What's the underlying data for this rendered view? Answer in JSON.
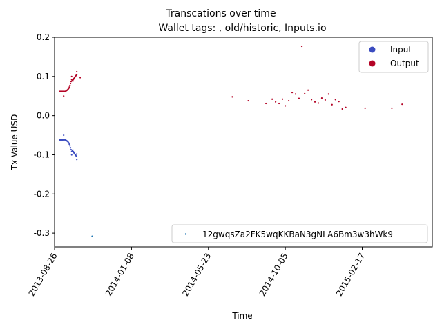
{
  "chart_data": {
    "type": "scatter",
    "title": "Transcations over time",
    "subtitle": "Wallet tags: , old/historic, Inputs.io",
    "xlabel": "Time",
    "ylabel": "Tx Value USD",
    "xlim": [
      "2013-08-26",
      "2015-06-20"
    ],
    "ylim": [
      -0.335,
      0.2
    ],
    "x_ticks": [
      "2013-08-26",
      "2014-01-08",
      "2014-05-23",
      "2014-10-05",
      "2015-02-17"
    ],
    "y_ticks": [
      -0.3,
      -0.2,
      -0.1,
      0.0,
      0.1,
      0.2
    ],
    "grid": false,
    "legend": {
      "placement": "top-right",
      "entries": [
        {
          "label": "Input",
          "color": "#3b4cc0"
        },
        {
          "label": "Output",
          "color": "#b40426"
        }
      ]
    },
    "legend2": {
      "placement": "lower-right",
      "entries": [
        {
          "label": "12gwqsZa2FK5wqKKBaN3gNLA6Bm3w3hWk9",
          "color": "#1f77b4"
        }
      ]
    },
    "series": [
      {
        "name": "Input",
        "color": "#3b4cc0",
        "points": [
          {
            "x": "2013-09-04",
            "y": -0.062
          },
          {
            "x": "2013-09-05",
            "y": -0.062
          },
          {
            "x": "2013-09-06",
            "y": -0.062
          },
          {
            "x": "2013-09-07",
            "y": -0.062
          },
          {
            "x": "2013-09-08",
            "y": -0.062
          },
          {
            "x": "2013-09-09",
            "y": -0.062
          },
          {
            "x": "2013-09-10",
            "y": -0.062
          },
          {
            "x": "2013-09-11",
            "y": -0.05
          },
          {
            "x": "2013-09-13",
            "y": -0.062
          },
          {
            "x": "2013-09-14",
            "y": -0.062
          },
          {
            "x": "2013-09-15",
            "y": -0.063
          },
          {
            "x": "2013-09-16",
            "y": -0.064
          },
          {
            "x": "2013-09-17",
            "y": -0.065
          },
          {
            "x": "2013-09-18",
            "y": -0.066
          },
          {
            "x": "2013-09-19",
            "y": -0.068
          },
          {
            "x": "2013-09-20",
            "y": -0.07
          },
          {
            "x": "2013-09-21",
            "y": -0.073
          },
          {
            "x": "2013-09-22",
            "y": -0.077
          },
          {
            "x": "2013-09-23",
            "y": -0.082
          },
          {
            "x": "2013-09-24",
            "y": -0.087
          },
          {
            "x": "2013-09-25",
            "y": -0.092
          },
          {
            "x": "2013-09-25",
            "y": -0.1
          },
          {
            "x": "2013-09-26",
            "y": -0.09
          },
          {
            "x": "2013-09-27",
            "y": -0.088
          },
          {
            "x": "2013-09-28",
            "y": -0.092
          },
          {
            "x": "2013-09-29",
            "y": -0.095
          },
          {
            "x": "2013-09-30",
            "y": -0.097
          },
          {
            "x": "2013-10-01",
            "y": -0.099
          },
          {
            "x": "2013-10-02",
            "y": -0.101
          },
          {
            "x": "2013-10-03",
            "y": -0.103
          },
          {
            "x": "2013-10-04",
            "y": -0.112
          },
          {
            "x": "2013-10-04",
            "y": -0.098
          }
        ]
      },
      {
        "name": "Output",
        "color": "#b40426",
        "points": [
          {
            "x": "2013-09-04",
            "y": 0.062
          },
          {
            "x": "2013-09-05",
            "y": 0.062
          },
          {
            "x": "2013-09-06",
            "y": 0.062
          },
          {
            "x": "2013-09-07",
            "y": 0.062
          },
          {
            "x": "2013-09-08",
            "y": 0.062
          },
          {
            "x": "2013-09-09",
            "y": 0.062
          },
          {
            "x": "2013-09-10",
            "y": 0.062
          },
          {
            "x": "2013-09-11",
            "y": 0.05
          },
          {
            "x": "2013-09-13",
            "y": 0.062
          },
          {
            "x": "2013-09-14",
            "y": 0.062
          },
          {
            "x": "2013-09-15",
            "y": 0.063
          },
          {
            "x": "2013-09-16",
            "y": 0.064
          },
          {
            "x": "2013-09-17",
            "y": 0.065
          },
          {
            "x": "2013-09-18",
            "y": 0.066
          },
          {
            "x": "2013-09-19",
            "y": 0.068
          },
          {
            "x": "2013-09-20",
            "y": 0.07
          },
          {
            "x": "2013-09-21",
            "y": 0.073
          },
          {
            "x": "2013-09-22",
            "y": 0.077
          },
          {
            "x": "2013-09-23",
            "y": 0.082
          },
          {
            "x": "2013-09-24",
            "y": 0.087
          },
          {
            "x": "2013-09-25",
            "y": 0.092
          },
          {
            "x": "2013-09-25",
            "y": 0.1
          },
          {
            "x": "2013-09-26",
            "y": 0.09
          },
          {
            "x": "2013-09-27",
            "y": 0.088
          },
          {
            "x": "2013-09-28",
            "y": 0.092
          },
          {
            "x": "2013-09-29",
            "y": 0.095
          },
          {
            "x": "2013-09-30",
            "y": 0.097
          },
          {
            "x": "2013-10-01",
            "y": 0.099
          },
          {
            "x": "2013-10-02",
            "y": 0.101
          },
          {
            "x": "2013-10-03",
            "y": 0.103
          },
          {
            "x": "2013-10-04",
            "y": 0.112
          },
          {
            "x": "2013-10-04",
            "y": 0.105
          },
          {
            "x": "2013-10-10",
            "y": 0.097
          },
          {
            "x": "2014-07-04",
            "y": 0.048
          },
          {
            "x": "2014-08-01",
            "y": 0.038
          },
          {
            "x": "2014-09-01",
            "y": 0.031
          },
          {
            "x": "2014-09-12",
            "y": 0.042
          },
          {
            "x": "2014-09-18",
            "y": 0.035
          },
          {
            "x": "2014-09-24",
            "y": 0.031
          },
          {
            "x": "2014-09-30",
            "y": 0.042
          },
          {
            "x": "2014-10-05",
            "y": 0.025
          },
          {
            "x": "2014-10-11",
            "y": 0.038
          },
          {
            "x": "2014-10-17",
            "y": 0.059
          },
          {
            "x": "2014-10-23",
            "y": 0.055
          },
          {
            "x": "2014-10-29",
            "y": 0.044
          },
          {
            "x": "2014-11-03",
            "y": 0.177
          },
          {
            "x": "2014-11-08",
            "y": 0.056
          },
          {
            "x": "2014-11-14",
            "y": 0.065
          },
          {
            "x": "2014-11-20",
            "y": 0.041
          },
          {
            "x": "2014-11-26",
            "y": 0.035
          },
          {
            "x": "2014-12-02",
            "y": 0.032
          },
          {
            "x": "2014-12-08",
            "y": 0.045
          },
          {
            "x": "2014-12-14",
            "y": 0.04
          },
          {
            "x": "2014-12-20",
            "y": 0.055
          },
          {
            "x": "2014-12-26",
            "y": 0.028
          },
          {
            "x": "2015-01-01",
            "y": 0.041
          },
          {
            "x": "2015-01-07",
            "y": 0.036
          },
          {
            "x": "2015-01-13",
            "y": 0.017
          },
          {
            "x": "2015-01-19",
            "y": 0.021
          },
          {
            "x": "2015-02-22",
            "y": 0.019
          },
          {
            "x": "2015-04-10",
            "y": 0.019
          },
          {
            "x": "2015-04-28",
            "y": 0.029
          }
        ]
      },
      {
        "name": "12gwqsZa2FK5wqKKBaN3gNLA6Bm3w3hWk9",
        "color": "#1f77b4",
        "points": [
          {
            "x": "2013-10-31",
            "y": -0.308
          }
        ]
      }
    ]
  }
}
